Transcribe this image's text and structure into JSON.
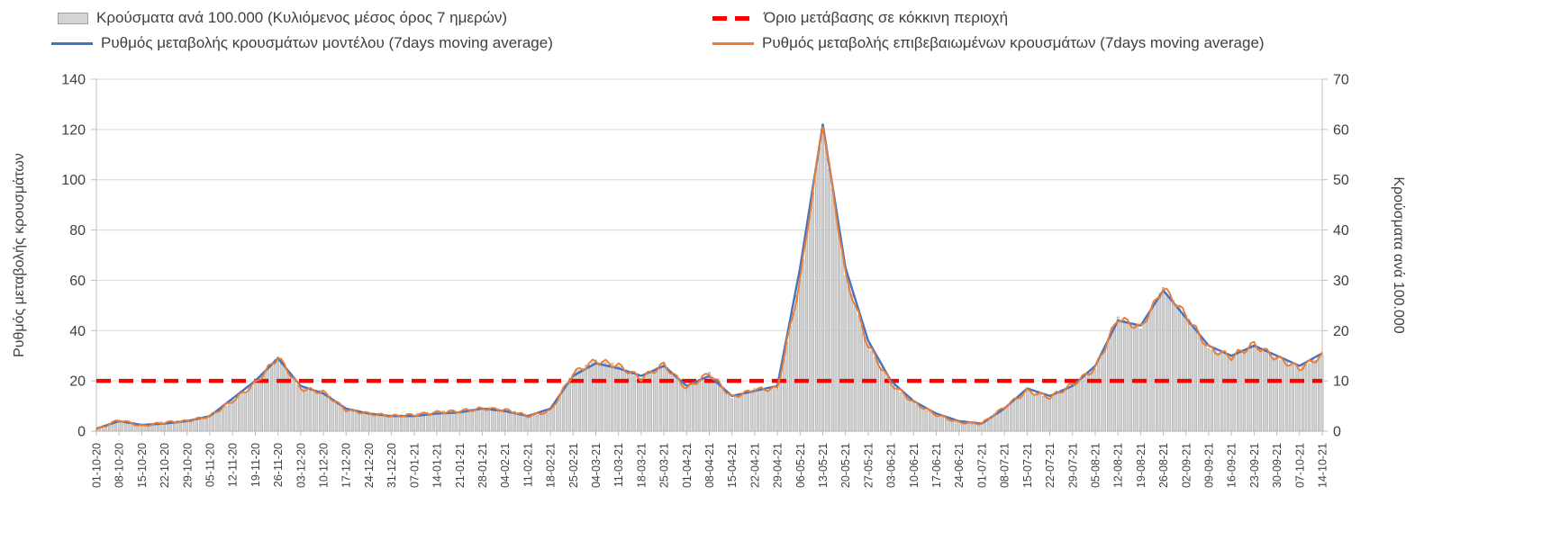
{
  "chart_data": {
    "type": "combo",
    "title": "",
    "x_labels": [
      "01-10-20",
      "08-10-20",
      "15-10-20",
      "22-10-20",
      "29-10-20",
      "05-11-20",
      "12-11-20",
      "19-11-20",
      "26-11-20",
      "03-12-20",
      "10-12-20",
      "17-12-20",
      "24-12-20",
      "31-12-20",
      "07-01-21",
      "14-01-21",
      "21-01-21",
      "28-01-21",
      "04-02-21",
      "11-02-21",
      "18-02-21",
      "25-02-21",
      "04-03-21",
      "11-03-21",
      "18-03-21",
      "25-03-21",
      "01-04-21",
      "08-04-21",
      "15-04-21",
      "22-04-21",
      "29-04-21",
      "06-05-21",
      "13-05-21",
      "20-05-21",
      "27-05-21",
      "03-06-21",
      "10-06-21",
      "17-06-21",
      "24-06-21",
      "01-07-21",
      "08-07-21",
      "15-07-21",
      "22-07-21",
      "29-07-21",
      "05-08-21",
      "12-08-21",
      "19-08-21",
      "26-08-21",
      "02-09-21",
      "09-09-21",
      "16-09-21",
      "23-09-21",
      "30-09-21",
      "07-10-21",
      "14-10-21"
    ],
    "left_axis": {
      "label": "Ρυθμός μεταβολής κρουσμάτων",
      "min": 0,
      "max": 140,
      "step": 20
    },
    "right_axis": {
      "label": "Κρούσματα ανά 100.000",
      "min": 0,
      "max": 70,
      "step": 10
    },
    "threshold": {
      "label": "Όριο μετάβασης σε κόκκινη περιοχή",
      "value": 20,
      "axis": "left",
      "color": "#FF0000"
    },
    "series": [
      {
        "name": "Κρούσματα ανά 100.000 (Κυλιόμενος μέσος όρος 7 ημερών)",
        "type": "bar",
        "axis": "right",
        "color": "#D4D4D4",
        "border_color": "#9C9C9C",
        "values": [
          0.25,
          2.25,
          1,
          1.75,
          2,
          3,
          6,
          9.5,
          14.75,
          8.5,
          7.75,
          4.25,
          3.5,
          3,
          3.25,
          3.75,
          4,
          4.5,
          4.25,
          3,
          4,
          11.5,
          14,
          13,
          10.5,
          13.25,
          8.5,
          11.5,
          6.75,
          8.25,
          8.5,
          30,
          61,
          31,
          17,
          9.5,
          5.75,
          3.25,
          1.75,
          1.5,
          4.75,
          8,
          6.75,
          9.25,
          12.5,
          22.5,
          20.5,
          28.5,
          23,
          16.5,
          14.75,
          17.25,
          14.5,
          12.5,
          15
        ]
      },
      {
        "name": "Ρυθμός μεταβολής κρουσμάτων μοντέλου (7days moving average)",
        "type": "line",
        "axis": "left",
        "color": "#4472C4",
        "values": [
          1,
          4,
          2.5,
          3,
          4,
          6,
          13,
          20,
          29,
          18,
          15,
          9,
          7,
          6,
          6,
          7,
          7.5,
          9,
          8,
          6,
          9,
          22,
          27,
          25,
          22,
          26,
          18,
          22,
          14,
          16,
          18,
          65,
          122,
          65,
          36,
          20,
          12,
          7,
          4,
          3,
          9,
          17,
          14,
          18,
          26,
          44,
          42,
          56,
          45,
          34,
          30,
          34,
          30,
          26,
          31
        ]
      },
      {
        "name": "Ρυθμός μεταβολής επιβεβαιωμένων κρουσμάτων (7days moving average)",
        "type": "line",
        "axis": "left",
        "color": "#ED7D31",
        "values": [
          0.5,
          4.5,
          2,
          3.5,
          4,
          6,
          12,
          19,
          29.5,
          17,
          15.5,
          8.5,
          7,
          6,
          6.5,
          7.5,
          8,
          9,
          8.5,
          6,
          8,
          23,
          28,
          26,
          21,
          26.5,
          17,
          23,
          13.5,
          16.5,
          17,
          60,
          122.5,
          62,
          34,
          19,
          11.5,
          6.5,
          3.5,
          3,
          9.5,
          16,
          13.5,
          18.5,
          25,
          45,
          41,
          57,
          46,
          33,
          29.5,
          34.5,
          29,
          25,
          30
        ]
      }
    ],
    "text_color": "#404040",
    "grid_color": "#D9D9D9",
    "axis_line_color": "#BFBFBF",
    "background": "#FFFFFF"
  }
}
